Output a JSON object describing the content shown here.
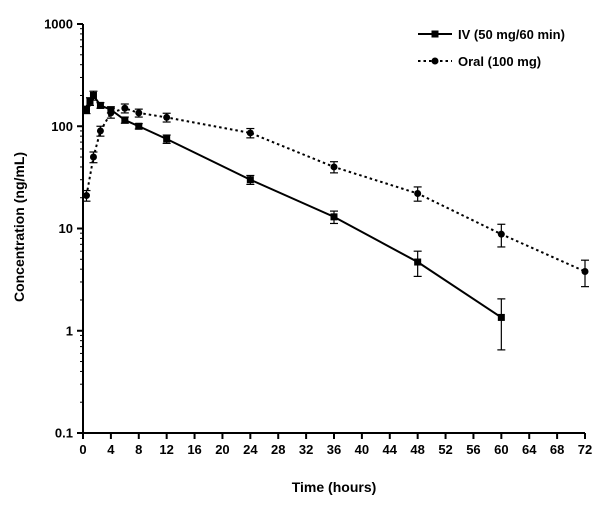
{
  "chart_data": {
    "type": "line",
    "title": "",
    "xlabel": "Time (hours)",
    "ylabel": "Concentration (ng/mL)",
    "y_scale": "log",
    "xlim": [
      0,
      72
    ],
    "ylim": [
      0.1,
      1000
    ],
    "x_ticks": [
      0,
      4,
      8,
      12,
      16,
      20,
      24,
      28,
      32,
      36,
      40,
      44,
      48,
      52,
      56,
      60,
      64,
      68,
      72
    ],
    "y_ticks": [
      {
        "value": 0.1,
        "label": "0.1"
      },
      {
        "value": 1,
        "label": "1"
      },
      {
        "value": 10,
        "label": "10"
      },
      {
        "value": 100,
        "label": "100"
      },
      {
        "value": 1000,
        "label": "1000"
      }
    ],
    "grid": false,
    "legend_position": "top-right",
    "series": [
      {
        "name": "IV (50 mg/60 min)",
        "line_style": "solid",
        "marker": "square",
        "color": "#000000",
        "points": [
          {
            "x": 0.5,
            "y": 145,
            "err": 12
          },
          {
            "x": 1,
            "y": 175,
            "err": 15
          },
          {
            "x": 1.5,
            "y": 200,
            "err": 20
          },
          {
            "x": 2.5,
            "y": 160,
            "err": 10
          },
          {
            "x": 4,
            "y": 145,
            "err": 10
          },
          {
            "x": 6,
            "y": 115,
            "err": 8
          },
          {
            "x": 8,
            "y": 100,
            "err": 6
          },
          {
            "x": 12,
            "y": 75,
            "err": 7
          },
          {
            "x": 24,
            "y": 30,
            "err": 3
          },
          {
            "x": 36,
            "y": 13,
            "err": 1.8
          },
          {
            "x": 48,
            "y": 4.7,
            "err": 1.3
          },
          {
            "x": 60,
            "y": 1.35,
            "err": 0.7
          }
        ]
      },
      {
        "name": "Oral (100 mg)",
        "line_style": "dotted",
        "marker": "circle",
        "color": "#000000",
        "points": [
          {
            "x": 0.5,
            "y": 21,
            "err": 2.5
          },
          {
            "x": 1.5,
            "y": 50,
            "err": 6
          },
          {
            "x": 2.5,
            "y": 90,
            "err": 10
          },
          {
            "x": 4,
            "y": 135,
            "err": 15
          },
          {
            "x": 6,
            "y": 150,
            "err": 15
          },
          {
            "x": 8,
            "y": 135,
            "err": 12
          },
          {
            "x": 12,
            "y": 122,
            "err": 12
          },
          {
            "x": 24,
            "y": 86,
            "err": 9
          },
          {
            "x": 36,
            "y": 40,
            "err": 5
          },
          {
            "x": 48,
            "y": 22,
            "err": 3.5
          },
          {
            "x": 60,
            "y": 8.8,
            "err": 2.2
          },
          {
            "x": 72,
            "y": 3.8,
            "err": 1.1
          }
        ]
      }
    ]
  }
}
